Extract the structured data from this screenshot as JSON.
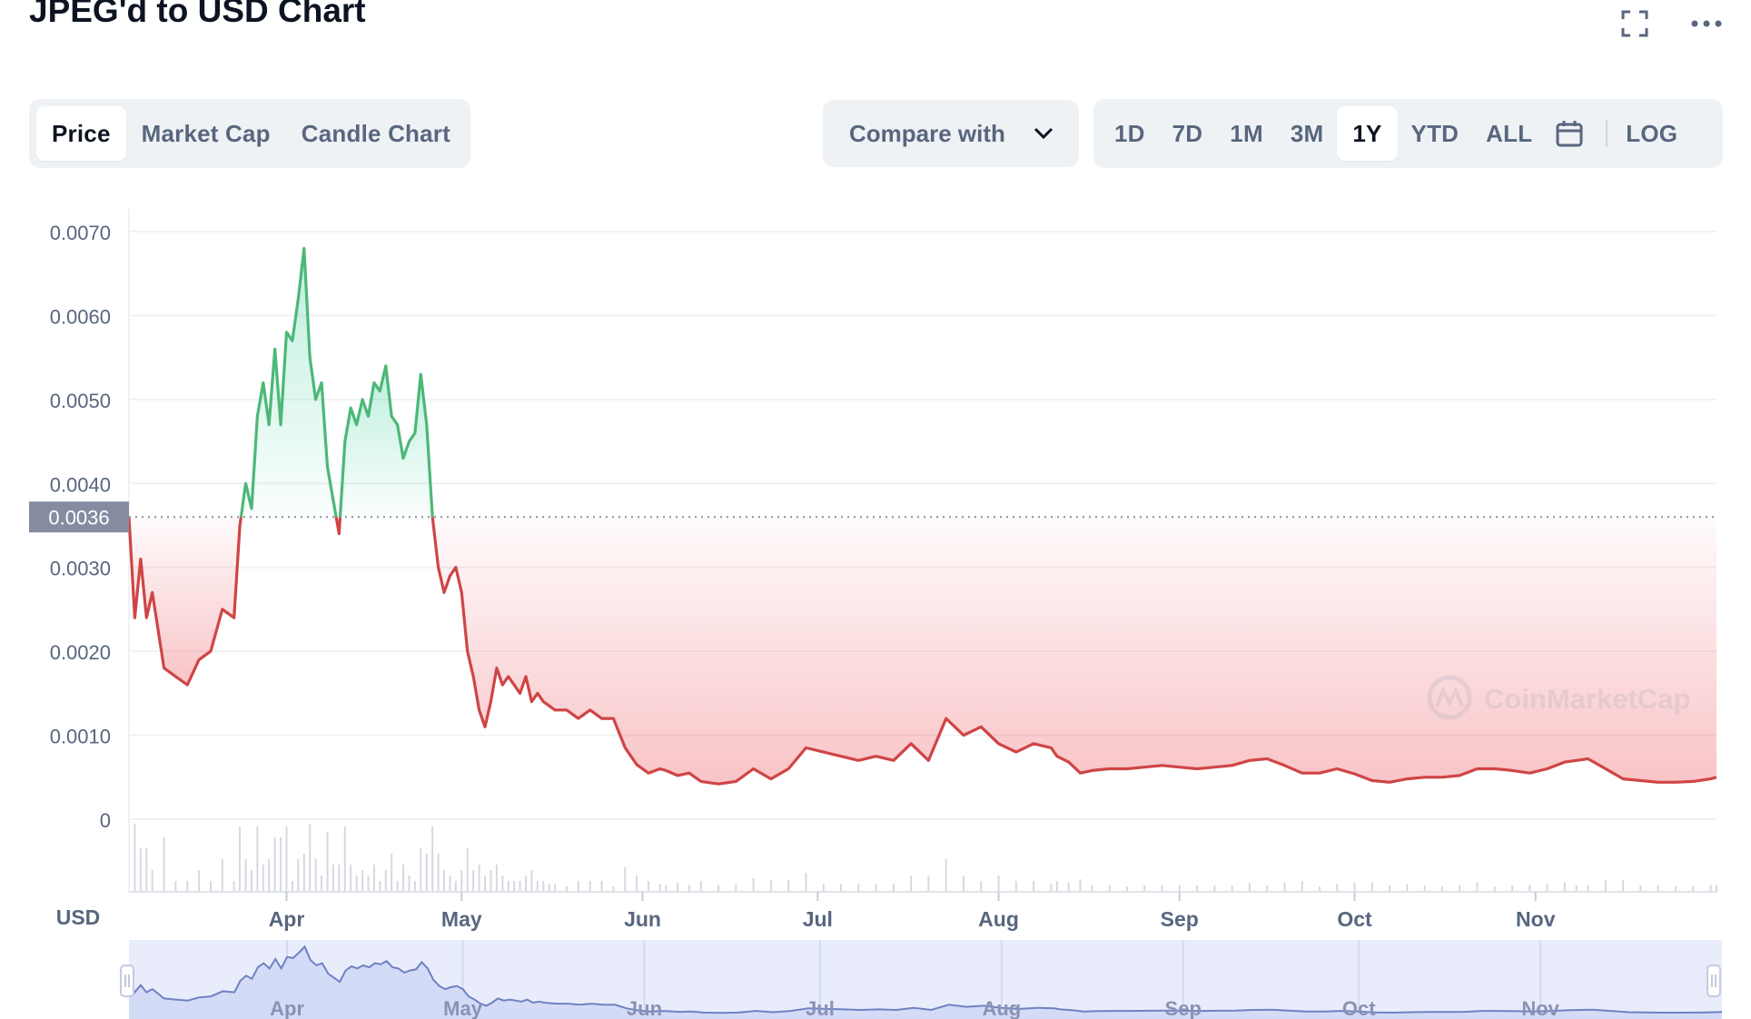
{
  "title": "JPEG'd to USD Chart",
  "tabs": [
    {
      "label": "Price",
      "active": true
    },
    {
      "label": "Market Cap",
      "active": false
    },
    {
      "label": "Candle Chart",
      "active": false
    }
  ],
  "compare": {
    "label": "Compare with"
  },
  "ranges": [
    {
      "label": "1D",
      "active": false
    },
    {
      "label": "7D",
      "active": false
    },
    {
      "label": "1M",
      "active": false
    },
    {
      "label": "3M",
      "active": false
    },
    {
      "label": "1Y",
      "active": true
    },
    {
      "label": "YTD",
      "active": false
    },
    {
      "label": "ALL",
      "active": false
    }
  ],
  "log_label": "LOG",
  "icons": {
    "fullscreen": "fullscreen-icon",
    "more": "more-icon",
    "calendar": "calendar-icon",
    "chevron": "chevron-down-icon"
  },
  "colors": {
    "up": "#16c784",
    "down": "#ea3943",
    "up_line": "#4cb877",
    "down_line": "#cf4545",
    "navigator_line": "#6f82c2"
  },
  "watermark": "CoinMarketCap",
  "chart_data": {
    "type": "area",
    "currency_label": "USD",
    "yticks": [
      "0.0070",
      "0.0060",
      "0.0050",
      "0.0040",
      "0.0030",
      "0.0020",
      "0.0010",
      "0"
    ],
    "ylim": [
      0,
      0.007
    ],
    "reference_label": "0.0036",
    "reference_value": 0.0036,
    "xticks": [
      {
        "label": "Apr",
        "x": 56
      },
      {
        "label": "May",
        "x": 86
      },
      {
        "label": "Jun",
        "x": 117
      },
      {
        "label": "Jul",
        "x": 147
      },
      {
        "label": "Aug",
        "x": 178
      },
      {
        "label": "Sep",
        "x": 209
      },
      {
        "label": "Oct",
        "x": 239
      },
      {
        "label": "Nov",
        "x": 270
      }
    ],
    "xlim": [
      29,
      301
    ],
    "series": [
      {
        "x": [
          29,
          30,
          31,
          32,
          33,
          35,
          37,
          39,
          41,
          43,
          45,
          47,
          48,
          49,
          50,
          51,
          52,
          53,
          54,
          55,
          56,
          57,
          58,
          59,
          60,
          61,
          62,
          63,
          64,
          65,
          66,
          67,
          68,
          69,
          70,
          71,
          72,
          73,
          74,
          75,
          76,
          77,
          78,
          79,
          80,
          81,
          82,
          83,
          84,
          85,
          86,
          87,
          88,
          89,
          90,
          91,
          92,
          93,
          94,
          95,
          96,
          97,
          98,
          99,
          100,
          101,
          102,
          104,
          106,
          108,
          110,
          112,
          114,
          116,
          118,
          120,
          121,
          123,
          125,
          127,
          130,
          133,
          136,
          139,
          142,
          145,
          148,
          151,
          154,
          157,
          160,
          163,
          166,
          169,
          172,
          175,
          178,
          181,
          184,
          187,
          188,
          190,
          192,
          194,
          197,
          200,
          203,
          206,
          209,
          212,
          215,
          218,
          221,
          224,
          227,
          230,
          233,
          236,
          239,
          242,
          245,
          248,
          251,
          254,
          257,
          260,
          263,
          266,
          269,
          272,
          275,
          277,
          279,
          282,
          285,
          288,
          291,
          294,
          297,
          300,
          301
        ],
        "y": [
          0.0036,
          0.0024,
          0.0031,
          0.0024,
          0.0027,
          0.0018,
          0.0017,
          0.0016,
          0.0019,
          0.002,
          0.0025,
          0.0024,
          0.0035,
          0.004,
          0.0037,
          0.0048,
          0.0052,
          0.0047,
          0.0056,
          0.0047,
          0.0058,
          0.0057,
          0.0062,
          0.0068,
          0.0055,
          0.005,
          0.0052,
          0.0042,
          0.0038,
          0.0034,
          0.0045,
          0.0049,
          0.0047,
          0.005,
          0.0048,
          0.0052,
          0.0051,
          0.0054,
          0.0048,
          0.0047,
          0.0043,
          0.0045,
          0.0046,
          0.0053,
          0.0047,
          0.0036,
          0.003,
          0.0027,
          0.0029,
          0.003,
          0.0027,
          0.002,
          0.0017,
          0.0013,
          0.0011,
          0.0014,
          0.0018,
          0.0016,
          0.0017,
          0.0016,
          0.0015,
          0.0017,
          0.0014,
          0.0015,
          0.0014,
          0.00135,
          0.0013,
          0.0013,
          0.0012,
          0.0013,
          0.0012,
          0.0012,
          0.00085,
          0.00065,
          0.00055,
          0.0006,
          0.00058,
          0.00052,
          0.00055,
          0.00045,
          0.00042,
          0.00045,
          0.0006,
          0.00048,
          0.0006,
          0.00085,
          0.0008,
          0.00075,
          0.0007,
          0.00075,
          0.0007,
          0.0009,
          0.0007,
          0.0012,
          0.001,
          0.0011,
          0.0009,
          0.0008,
          0.0009,
          0.00085,
          0.00075,
          0.00068,
          0.00055,
          0.00058,
          0.0006,
          0.0006,
          0.00062,
          0.00064,
          0.00062,
          0.0006,
          0.00062,
          0.00064,
          0.0007,
          0.00072,
          0.00064,
          0.00055,
          0.00055,
          0.0006,
          0.00054,
          0.00046,
          0.00044,
          0.00048,
          0.0005,
          0.0005,
          0.00052,
          0.0006,
          0.0006,
          0.00058,
          0.00055,
          0.0006,
          0.00068,
          0.0007,
          0.00072,
          0.0006,
          0.00048,
          0.00046,
          0.00044,
          0.00044,
          0.00045,
          0.00048,
          0.0005
        ]
      }
    ],
    "navigator_labels": [
      "Apr",
      "May",
      "Jun",
      "Jul",
      "Aug",
      "Sep",
      "Oct",
      "Nov"
    ]
  }
}
